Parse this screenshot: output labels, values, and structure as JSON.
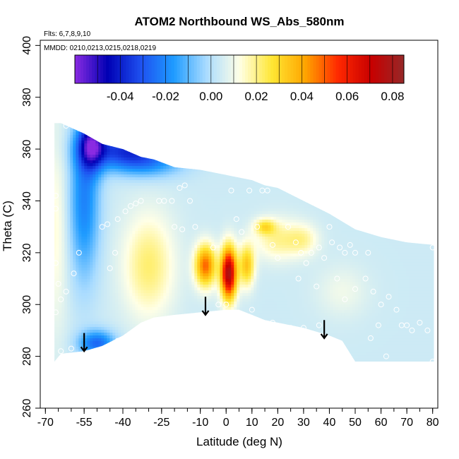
{
  "chart_data": {
    "type": "heatmap",
    "title": "ATOM2 Northbound WS_Abs_580nm",
    "annotations": {
      "flights": "Flts: 6,7,8,9,10",
      "dates": "MMDD: 0210,0213,0215,0218,0219"
    },
    "xlabel": "Latitude (deg N)",
    "ylabel": "Theta (C)",
    "xlim": [
      -72,
      82
    ],
    "ylim": [
      260,
      402
    ],
    "x_ticks": [
      -70,
      -55,
      -40,
      -25,
      -10,
      0,
      10,
      20,
      30,
      40,
      50,
      60,
      70,
      80
    ],
    "x_tick_labels": [
      "-70",
      "-55",
      "-40",
      "-25",
      "-10",
      "0",
      "10",
      "20",
      "30",
      "40",
      "50",
      "60",
      "70",
      "80"
    ],
    "x_minor_step": 5,
    "y_ticks": [
      260,
      280,
      300,
      320,
      340,
      360,
      380,
      400
    ],
    "y_tick_labels": [
      "260",
      "280",
      "300",
      "320",
      "340",
      "360",
      "380",
      "400"
    ],
    "colorbar": {
      "min": -0.06,
      "max": 0.085,
      "ticks": [
        -0.04,
        -0.02,
        0.0,
        0.02,
        0.04,
        0.06,
        0.08
      ],
      "tick_labels": [
        "-0.04",
        "-0.02",
        "0.00",
        "0.02",
        "0.04",
        "0.06",
        "0.08"
      ],
      "colors": [
        "#8a2be2",
        "#0000b4",
        "#1e50f0",
        "#1e9bff",
        "#aadcff",
        "#ffffe6",
        "#ffe633",
        "#ffa500",
        "#ff2800",
        "#c80000",
        "#962828"
      ]
    },
    "field_blobs": [
      {
        "lat": -55,
        "theta": 340,
        "v": -0.025,
        "sx": 6,
        "sy": 30
      },
      {
        "lat": -52,
        "theta": 362,
        "v": -0.04,
        "sx": 5,
        "sy": 10
      },
      {
        "lat": -40,
        "theta": 360,
        "v": -0.035,
        "sx": 14,
        "sy": 7
      },
      {
        "lat": -30,
        "theta": 355,
        "v": -0.02,
        "sx": 14,
        "sy": 6
      },
      {
        "lat": -66,
        "theta": 330,
        "v": 0.01,
        "sx": 5,
        "sy": 40
      },
      {
        "lat": -30,
        "theta": 315,
        "v": 0.018,
        "sx": 10,
        "sy": 20
      },
      {
        "lat": -50,
        "theta": 285,
        "v": -0.03,
        "sx": 7,
        "sy": 5
      },
      {
        "lat": -8,
        "theta": 315,
        "v": 0.045,
        "sx": 4,
        "sy": 8
      },
      {
        "lat": 1,
        "theta": 312,
        "v": 0.075,
        "sx": 3,
        "sy": 10
      },
      {
        "lat": 8,
        "theta": 315,
        "v": 0.03,
        "sx": 3,
        "sy": 8
      },
      {
        "lat": 20,
        "theta": 325,
        "v": 0.015,
        "sx": 9,
        "sy": 8
      },
      {
        "lat": 15,
        "theta": 330,
        "v": 0.02,
        "sx": 4,
        "sy": 3
      },
      {
        "lat": 30,
        "theta": 325,
        "v": 0.012,
        "sx": 6,
        "sy": 6
      },
      {
        "lat": 45,
        "theta": 305,
        "v": 0.006,
        "sx": 10,
        "sy": 10
      }
    ],
    "boundary_points": [
      {
        "lat": -66.5,
        "top": 370,
        "bottom": 278
      },
      {
        "lat": -64,
        "top": 370,
        "bottom": 281
      },
      {
        "lat": -55,
        "top": 366,
        "bottom": 282
      },
      {
        "lat": -48,
        "top": 362,
        "bottom": 284
      },
      {
        "lat": -40,
        "top": 360,
        "bottom": 288
      },
      {
        "lat": -33,
        "top": 357,
        "bottom": 293
      },
      {
        "lat": -28,
        "top": 356,
        "bottom": 295
      },
      {
        "lat": -20,
        "top": 353,
        "bottom": 296
      },
      {
        "lat": -10,
        "top": 352,
        "bottom": 297
      },
      {
        "lat": 0,
        "top": 350,
        "bottom": 298
      },
      {
        "lat": 5,
        "top": 349,
        "bottom": 298
      },
      {
        "lat": 10,
        "top": 348,
        "bottom": 296
      },
      {
        "lat": 15,
        "top": 346,
        "bottom": 294
      },
      {
        "lat": 20,
        "top": 345,
        "bottom": 293
      },
      {
        "lat": 30,
        "top": 340,
        "bottom": 291
      },
      {
        "lat": 40,
        "top": 335,
        "bottom": 288
      },
      {
        "lat": 45,
        "top": 332,
        "bottom": 286
      },
      {
        "lat": 50,
        "top": 329,
        "bottom": 278
      },
      {
        "lat": 60,
        "top": 326,
        "bottom": 278
      },
      {
        "lat": 70,
        "top": 324,
        "bottom": 278
      },
      {
        "lat": 80.5,
        "top": 323,
        "bottom": 278
      }
    ],
    "sample_points": [
      {
        "lat": -62,
        "theta": 369
      },
      {
        "lat": -57,
        "theta": 368
      },
      {
        "lat": -66,
        "theta": 342
      },
      {
        "lat": -66,
        "theta": 337
      },
      {
        "lat": -66,
        "theta": 316
      },
      {
        "lat": -65,
        "theta": 308
      },
      {
        "lat": -64,
        "theta": 302
      },
      {
        "lat": -66,
        "theta": 297
      },
      {
        "lat": -62,
        "theta": 305
      },
      {
        "lat": -59,
        "theta": 312
      },
      {
        "lat": -57,
        "theta": 320
      },
      {
        "lat": -64,
        "theta": 282
      },
      {
        "lat": -60,
        "theta": 283
      },
      {
        "lat": -48,
        "theta": 330
      },
      {
        "lat": -46,
        "theta": 331
      },
      {
        "lat": -42,
        "theta": 333
      },
      {
        "lat": -39,
        "theta": 336
      },
      {
        "lat": -37,
        "theta": 338
      },
      {
        "lat": -35,
        "theta": 339
      },
      {
        "lat": -33,
        "theta": 340
      },
      {
        "lat": -45,
        "theta": 314
      },
      {
        "lat": -43,
        "theta": 320
      },
      {
        "lat": -42,
        "theta": 286
      },
      {
        "lat": -26,
        "theta": 340
      },
      {
        "lat": -24,
        "theta": 340
      },
      {
        "lat": -21,
        "theta": 340
      },
      {
        "lat": -18,
        "theta": 345
      },
      {
        "lat": -16,
        "theta": 346
      },
      {
        "lat": -14,
        "theta": 340
      },
      {
        "lat": -12,
        "theta": 330
      },
      {
        "lat": -20,
        "theta": 330
      },
      {
        "lat": -17,
        "theta": 329
      },
      {
        "lat": -5,
        "theta": 322
      },
      {
        "lat": -3,
        "theta": 300
      },
      {
        "lat": 0,
        "theta": 300
      },
      {
        "lat": 2,
        "theta": 344
      },
      {
        "lat": 4,
        "theta": 333
      },
      {
        "lat": 6,
        "theta": 328
      },
      {
        "lat": 9,
        "theta": 344
      },
      {
        "lat": 12,
        "theta": 330
      },
      {
        "lat": 14,
        "theta": 344
      },
      {
        "lat": 16,
        "theta": 344
      },
      {
        "lat": 18,
        "theta": 323
      },
      {
        "lat": 20,
        "theta": 318
      },
      {
        "lat": 24,
        "theta": 330
      },
      {
        "lat": 27,
        "theta": 324
      },
      {
        "lat": 29,
        "theta": 320
      },
      {
        "lat": 31,
        "theta": 316
      },
      {
        "lat": 33,
        "theta": 320
      },
      {
        "lat": 36,
        "theta": 322
      },
      {
        "lat": 38,
        "theta": 318
      },
      {
        "lat": 41,
        "theta": 324
      },
      {
        "lat": 44,
        "theta": 322
      },
      {
        "lat": 46,
        "theta": 320
      },
      {
        "lat": 48,
        "theta": 323
      },
      {
        "lat": 50,
        "theta": 320
      },
      {
        "lat": 55,
        "theta": 320
      },
      {
        "lat": 57,
        "theta": 305
      },
      {
        "lat": 60,
        "theta": 300
      },
      {
        "lat": 63,
        "theta": 303
      },
      {
        "lat": 66,
        "theta": 298
      },
      {
        "lat": 68,
        "theta": 292
      },
      {
        "lat": 70,
        "theta": 292
      },
      {
        "lat": 72,
        "theta": 290
      },
      {
        "lat": 75,
        "theta": 293
      },
      {
        "lat": 78,
        "theta": 290
      },
      {
        "lat": 80,
        "theta": 322
      },
      {
        "lat": 40,
        "theta": 330
      },
      {
        "lat": 43,
        "theta": 310
      },
      {
        "lat": 46,
        "theta": 302
      },
      {
        "lat": 54,
        "theta": 310
      },
      {
        "lat": 56,
        "theta": 287
      },
      {
        "lat": 59,
        "theta": 292
      },
      {
        "lat": 62,
        "theta": 280
      },
      {
        "lat": 36,
        "theta": 292
      },
      {
        "lat": 30,
        "theta": 291
      },
      {
        "lat": 25,
        "theta": 291
      },
      {
        "lat": 18,
        "theta": 293
      },
      {
        "lat": 10,
        "theta": 298
      },
      {
        "lat": 39,
        "theta": 338
      },
      {
        "lat": 44,
        "theta": 338
      },
      {
        "lat": 50,
        "theta": 306
      },
      {
        "lat": 35,
        "theta": 307
      },
      {
        "lat": 28,
        "theta": 310
      },
      {
        "lat": -68,
        "theta": 325
      },
      {
        "lat": 80,
        "theta": 278
      }
    ],
    "arrows": [
      {
        "lat": -55,
        "theta_top": 289,
        "theta_tip": 282
      },
      {
        "lat": -8,
        "theta_top": 303,
        "theta_tip": 296
      },
      {
        "lat": 38,
        "theta_top": 294,
        "theta_tip": 287
      }
    ]
  }
}
